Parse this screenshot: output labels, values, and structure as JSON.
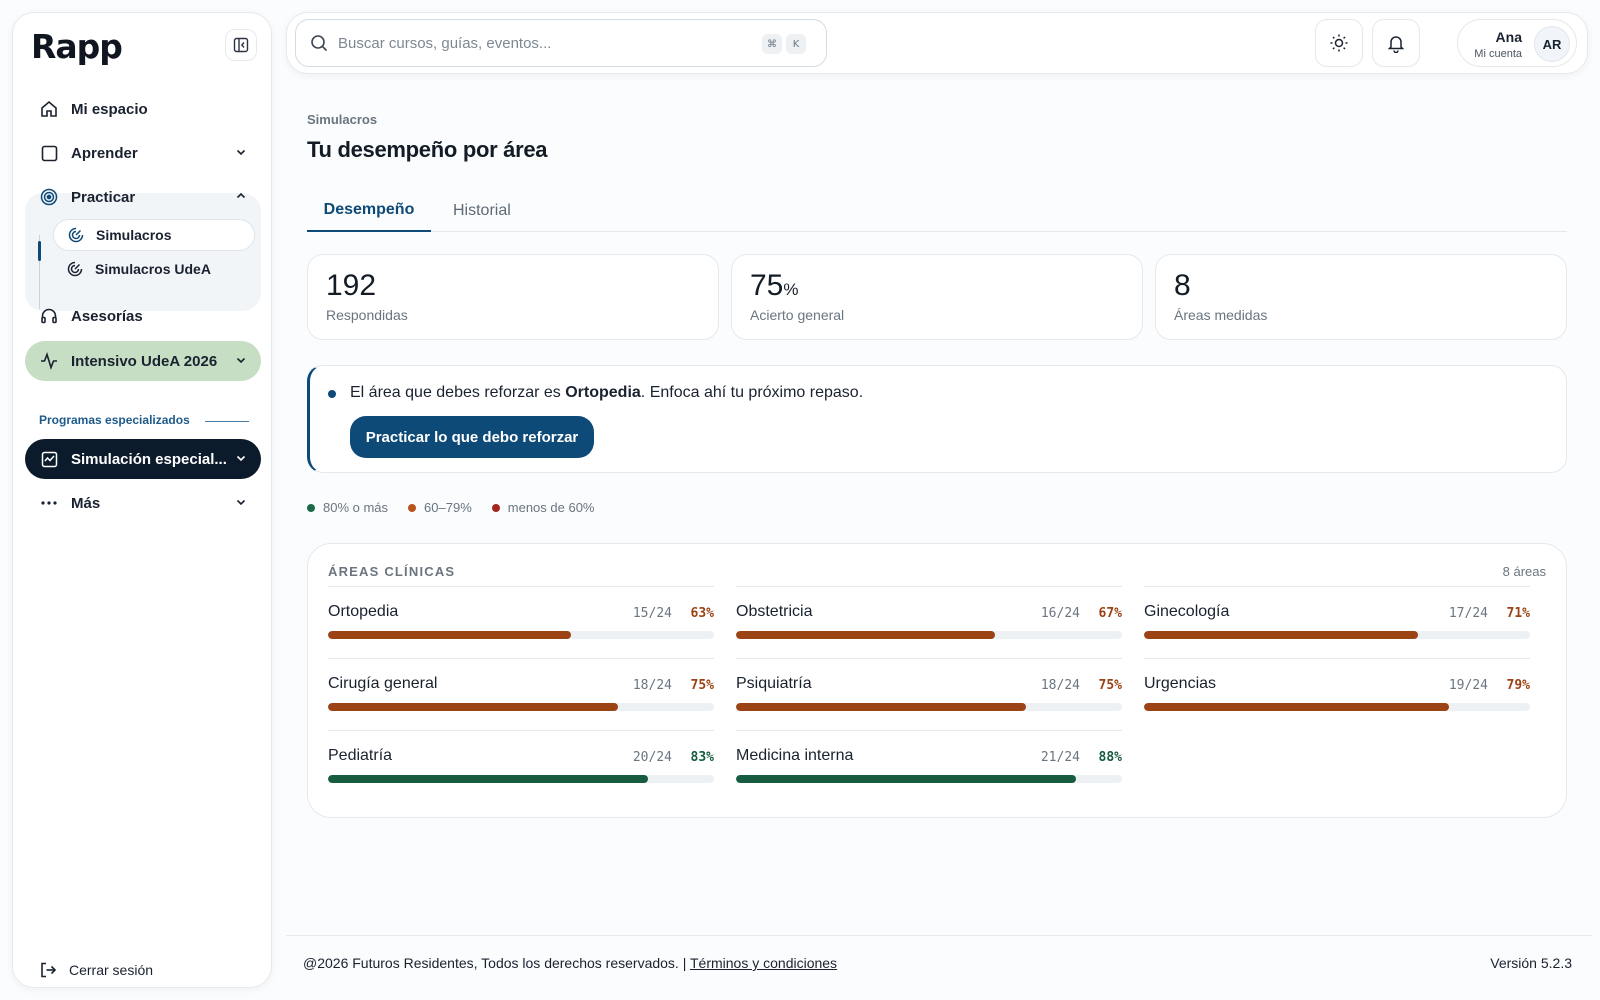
{
  "brand": {
    "logo_text": "Rapp"
  },
  "sidebar": {
    "items": [
      {
        "label": "Mi espacio"
      },
      {
        "label": "Aprender"
      },
      {
        "label": "Practicar"
      },
      {
        "label": "Asesorías"
      },
      {
        "label": "Intensivo UdeA 2026"
      },
      {
        "label": "Simulación especial..."
      },
      {
        "label": "Más"
      }
    ],
    "sub_items": [
      {
        "label": "Simulacros"
      },
      {
        "label": "Simulacros UdeA"
      }
    ],
    "section_label": "Programas especializados",
    "logout_label": "Cerrar sesión"
  },
  "search": {
    "placeholder": "Buscar cursos, guías, eventos...",
    "value": "",
    "shortcut_keys": [
      "⌘",
      "K"
    ]
  },
  "account": {
    "name": "Ana",
    "subtitle": "Mi cuenta",
    "initials": "AR"
  },
  "page": {
    "breadcrumb": "Simulacros",
    "title": "Tu desempeño por área"
  },
  "tabs": [
    {
      "label": "Desempeño"
    },
    {
      "label": "Historial"
    }
  ],
  "stats": [
    {
      "value": "192",
      "unit": "",
      "label": "Respondidas"
    },
    {
      "value": "75",
      "unit": "%",
      "label": "Acierto general"
    },
    {
      "value": "8",
      "unit": "",
      "label": "Áreas medidas"
    }
  ],
  "alert": {
    "prefix": "El área que debes reforzar es ",
    "area": "Ortopedia",
    "suffix": ". Enfoca ahí tu próximo repaso.",
    "button_label": "Practicar lo que debo reforzar"
  },
  "legend": [
    {
      "label": "80% o más",
      "color": "#1c6a49"
    },
    {
      "label": "60–79%",
      "color": "#b5541c"
    },
    {
      "label": "menos de 60%",
      "color": "#a3261f"
    }
  ],
  "areas_card": {
    "title": "ÁREAS CLÍNICAS",
    "count_label": "8 áreas",
    "areas": [
      {
        "name": "Ortopedia",
        "ratio": "15/24",
        "pct_label": "63%",
        "pct": 63,
        "level": "mid"
      },
      {
        "name": "Obstetricia",
        "ratio": "16/24",
        "pct_label": "67%",
        "pct": 67,
        "level": "mid"
      },
      {
        "name": "Ginecología",
        "ratio": "17/24",
        "pct_label": "71%",
        "pct": 71,
        "level": "mid"
      },
      {
        "name": "Cirugía general",
        "ratio": "18/24",
        "pct_label": "75%",
        "pct": 75,
        "level": "mid"
      },
      {
        "name": "Psiquiatría",
        "ratio": "18/24",
        "pct_label": "75%",
        "pct": 75,
        "level": "mid"
      },
      {
        "name": "Urgencias",
        "ratio": "19/24",
        "pct_label": "79%",
        "pct": 79,
        "level": "mid"
      },
      {
        "name": "Pediatría",
        "ratio": "20/24",
        "pct_label": "83%",
        "pct": 83,
        "level": "high"
      },
      {
        "name": "Medicina interna",
        "ratio": "21/24",
        "pct_label": "88%",
        "pct": 88,
        "level": "high"
      }
    ]
  },
  "colors": {
    "accent": "#0e4a78",
    "mid_bar": "#9b4314",
    "high_bar": "#175c40",
    "mid_text": "#9b4314",
    "high_text": "#175c40"
  },
  "footer": {
    "copyright": "@2026 Futuros Residentes, Todos los derechos reservados. |",
    "terms_label": "Términos y condiciones",
    "version": "Versión 5.2.3"
  }
}
